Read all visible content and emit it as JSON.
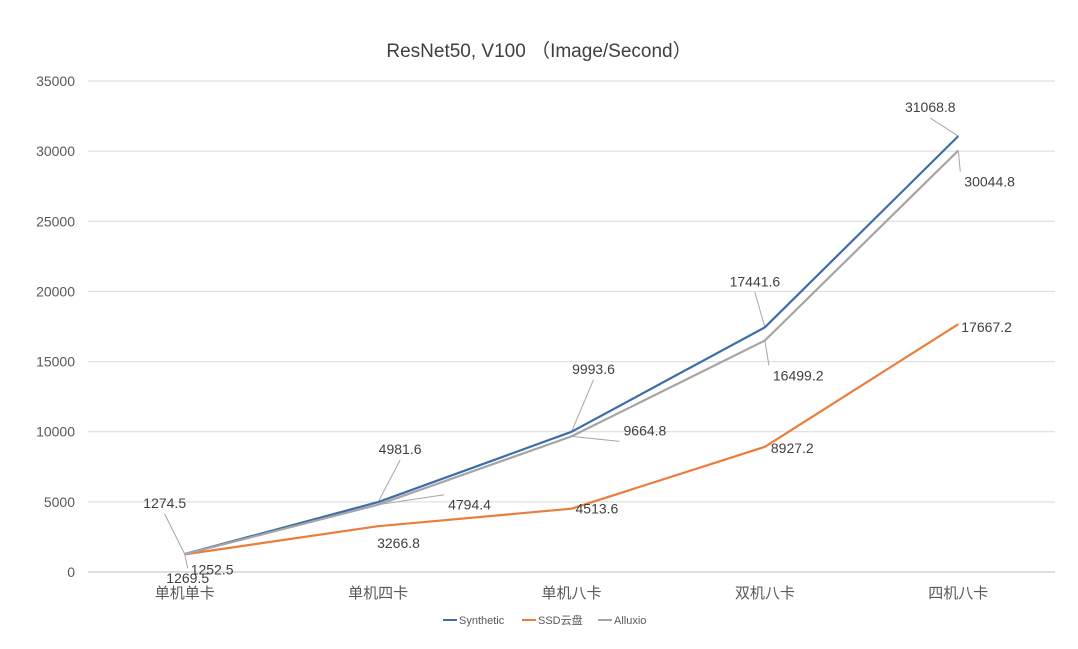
{
  "chart_data": {
    "type": "line",
    "title": "ResNet50, V100 （Image/Second）",
    "categories": [
      "单机单卡",
      "单机四卡",
      "单机八卡",
      "双机八卡",
      "四机八卡"
    ],
    "ylim": [
      0,
      35000
    ],
    "y_ticks": [
      0,
      5000,
      10000,
      15000,
      20000,
      25000,
      30000,
      35000
    ],
    "y_tick_labels": [
      "0",
      "5000",
      "10000",
      "15000",
      "20000",
      "25000",
      "30000",
      "35000"
    ],
    "grid": true,
    "legend_position": "bottom",
    "series": [
      {
        "name": "Synthetic",
        "color": "#3B6EA8",
        "values": [
          1274.5,
          4981.6,
          9993.6,
          17441.6,
          31068.8
        ],
        "labels": [
          "1274.5",
          "4981.6",
          "9993.6",
          "17441.6",
          "31068.8"
        ]
      },
      {
        "name": "SSD云盘",
        "color": "#EB7D3C",
        "values": [
          1252.5,
          3266.8,
          4513.6,
          8927.2,
          17667.2
        ],
        "labels": [
          "1252.5",
          "3266.8",
          "4513.6",
          "8927.2",
          "17667.2"
        ]
      },
      {
        "name": "Alluxio",
        "color": "#A5A5A5",
        "values": [
          1269.5,
          4794.4,
          9664.8,
          16499.2,
          30044.8
        ],
        "labels": [
          "1269.5",
          "4794.4",
          "9664.8",
          "16499.2",
          "30044.8"
        ]
      }
    ]
  }
}
